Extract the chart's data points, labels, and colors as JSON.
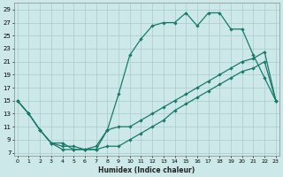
{
  "xlabel": "Humidex (Indice chaleur)",
  "bg_color": "#cce8e8",
  "grid_color": "#aacccc",
  "line_color": "#1a7a6a",
  "x_ticks": [
    0,
    1,
    2,
    3,
    4,
    5,
    6,
    7,
    8,
    9,
    10,
    11,
    12,
    13,
    14,
    15,
    16,
    17,
    18,
    19,
    20,
    21,
    22,
    23
  ],
  "y_ticks": [
    7,
    9,
    11,
    13,
    15,
    17,
    19,
    21,
    23,
    25,
    27,
    29
  ],
  "xlim": [
    -0.3,
    23.3
  ],
  "ylim": [
    6.5,
    30
  ],
  "line1_x": [
    0,
    1,
    2,
    3,
    4,
    5,
    6,
    7,
    8,
    9,
    10,
    11,
    12,
    13,
    14,
    15,
    16,
    17,
    18,
    19,
    20,
    21,
    22,
    23
  ],
  "line1_y": [
    15,
    13,
    10.5,
    8.5,
    8,
    8,
    7.5,
    8,
    10.5,
    16,
    22,
    24.5,
    26.5,
    27,
    27,
    28.5,
    26.5,
    28.5,
    28.5,
    26,
    26,
    22,
    18.5,
    15
  ],
  "line2_x": [
    0,
    1,
    2,
    3,
    4,
    5,
    6,
    7,
    8,
    9,
    10,
    11,
    12,
    13,
    14,
    15,
    16,
    17,
    18,
    19,
    20,
    21,
    22,
    23
  ],
  "line2_y": [
    15,
    13,
    10.5,
    8.5,
    7.5,
    7.5,
    7.5,
    7.5,
    10.5,
    11,
    11,
    12,
    13,
    14,
    15,
    16,
    17,
    18,
    19,
    20,
    21,
    21.5,
    22.5,
    15
  ],
  "line3_x": [
    0,
    1,
    2,
    3,
    4,
    5,
    6,
    7,
    8,
    9,
    10,
    11,
    12,
    13,
    14,
    15,
    16,
    17,
    18,
    19,
    20,
    21,
    22,
    23
  ],
  "line3_y": [
    15,
    13,
    10.5,
    8.5,
    8.5,
    7.5,
    7.5,
    7.5,
    8,
    8,
    9,
    10,
    11,
    12,
    13.5,
    14.5,
    15.5,
    16.5,
    17.5,
    18.5,
    19.5,
    20,
    21,
    15
  ]
}
